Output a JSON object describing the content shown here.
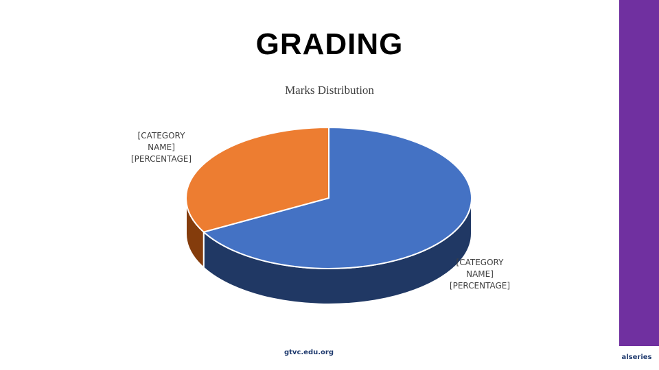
{
  "slide": {
    "title": "GRADING",
    "footer_url": "gtvc.edu.org",
    "footer_brand": "alseries",
    "accent_color": "#7030a0"
  },
  "chart_data": {
    "type": "pie",
    "title": "Marks Distribution",
    "three_d": true,
    "slices": [
      {
        "color": "#4472c4",
        "side_color": "#203864",
        "value_fraction": 0.67,
        "label_lines": [
          "[CATEGORY",
          "NAME]",
          "[PERCENTAGE]"
        ]
      },
      {
        "color": "#ed7d31",
        "side_color": "#843c0c",
        "value_fraction": 0.33,
        "label_lines": [
          "[CATEGORY",
          "NAME]",
          "[PERCENTAGE]"
        ]
      }
    ]
  }
}
